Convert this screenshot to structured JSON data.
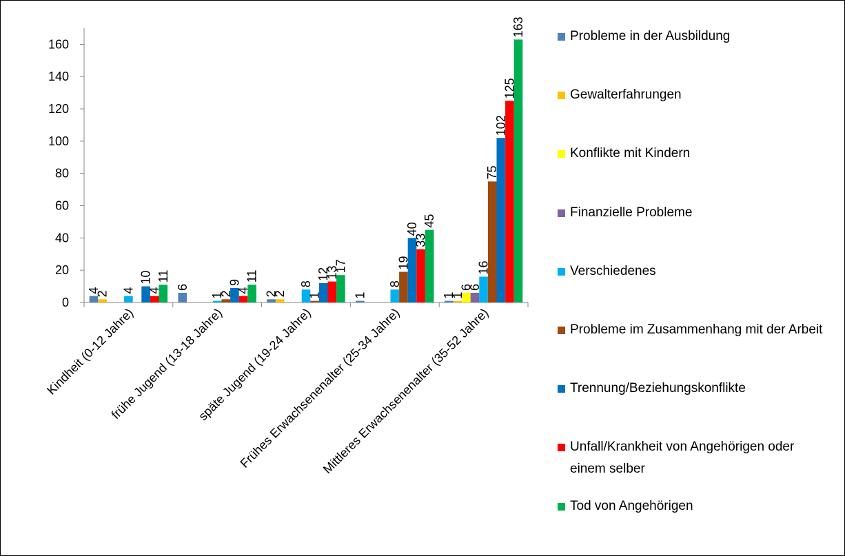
{
  "chart_data": {
    "type": "bar",
    "categories": [
      "Kindheit (0-12 Jahre)",
      "frühe Jugend (13-18 Jahre)",
      "späte Jugend (19-24 Jahre)",
      "Frühes Erwachsenenalter (25-34 Jahre)",
      "Mittleres Erwachsenenalter (35-52 Jahre)"
    ],
    "series": [
      {
        "name": "Probleme in der Ausbildung",
        "color": "#4f81bd",
        "values": [
          4,
          6,
          2,
          1,
          1
        ]
      },
      {
        "name": "Gewalterfahrungen",
        "color": "#ffc000",
        "values": [
          2,
          null,
          2,
          null,
          1
        ]
      },
      {
        "name": "Konflikte mit Kindern",
        "color": "#ffff00",
        "values": [
          null,
          null,
          null,
          null,
          6
        ]
      },
      {
        "name": "Finanzielle Probleme",
        "color": "#8064a2",
        "values": [
          null,
          null,
          null,
          null,
          6
        ]
      },
      {
        "name": "Verschiedenes",
        "color": "#00b0f0",
        "values": [
          4,
          1,
          8,
          8,
          16
        ]
      },
      {
        "name": "Probleme im Zusammenhang mit der Arbeit",
        "color": "#9c4a0f",
        "values": [
          null,
          2,
          1,
          19,
          75
        ]
      },
      {
        "name": "Trennung/Beziehungskonflikte",
        "color": "#0070c0",
        "values": [
          10,
          9,
          12,
          40,
          102
        ]
      },
      {
        "name": "Unfall/Krankheit von Angehörigen oder einem selber",
        "color": "#ff0000",
        "values": [
          4,
          4,
          13,
          33,
          125
        ]
      },
      {
        "name": "Tod von Angehörigen",
        "color": "#00b050",
        "values": [
          11,
          11,
          17,
          45,
          163
        ]
      }
    ],
    "ylim": [
      0,
      170
    ],
    "yticks": [
      0,
      20,
      40,
      60,
      80,
      100,
      120,
      140,
      160
    ],
    "legend": "right"
  }
}
